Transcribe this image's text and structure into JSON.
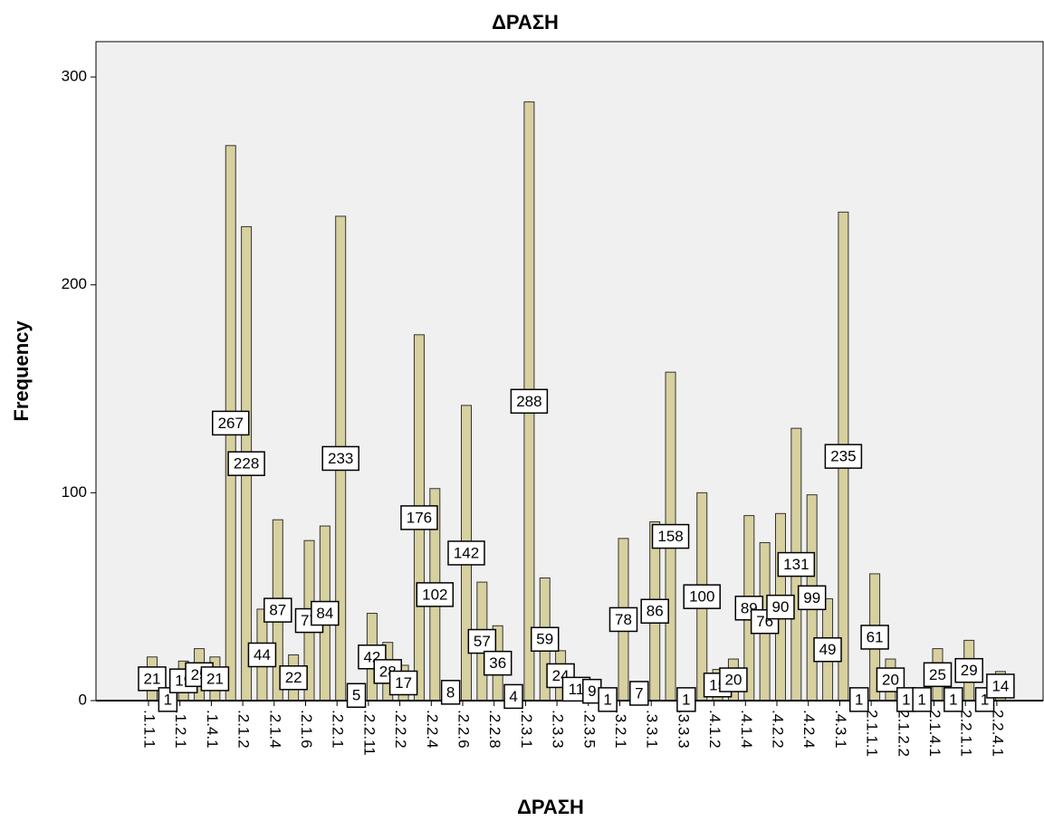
{
  "chart_data": {
    "type": "bar",
    "title": "ΔΡΑΣΗ",
    "x_label": "ΔΡΑΣΗ",
    "y_label": "Frequency",
    "categories": [
      ".1.1.1",
      null,
      ".1.2.1",
      null,
      ".1.4.1",
      null,
      ".2.1.2",
      null,
      ".2.1.4",
      null,
      ".2.1.6",
      null,
      ".2.2.1",
      null,
      ".2.2.11",
      null,
      ".2.2.2",
      null,
      ".2.2.4",
      null,
      ".2.2.6",
      null,
      ".2.2.8",
      null,
      ".2.3.1",
      null,
      ".2.3.3",
      null,
      ".2.3.5",
      null,
      ".3.2.1",
      null,
      ".3.3.1",
      null,
      ".3.3.3",
      null,
      ".4.1.2",
      null,
      ".4.1.4",
      null,
      ".4.2.2",
      null,
      ".4.2.4",
      null,
      ".4.3.1",
      null,
      "2.1.1.1",
      null,
      "2.1.2.2",
      null,
      "2.1.4.1",
      null,
      "2.2.1.1",
      null,
      "2.2.4.1"
    ],
    "values": [
      21,
      1,
      19,
      25,
      21,
      267,
      228,
      44,
      87,
      22,
      77,
      84,
      233,
      5,
      42,
      28,
      17,
      176,
      102,
      8,
      142,
      57,
      36,
      4,
      288,
      59,
      24,
      11,
      9,
      1,
      78,
      7,
      86,
      158,
      1,
      100,
      15,
      20,
      89,
      76,
      90,
      131,
      99,
      49,
      235,
      1,
      61,
      20,
      1,
      1,
      25,
      1,
      29,
      1,
      14
    ],
    "color": "#d7d09f",
    "ylim": [
      0,
      317
    ],
    "yticks": [
      0,
      100,
      200,
      300
    ],
    "grid": false
  }
}
